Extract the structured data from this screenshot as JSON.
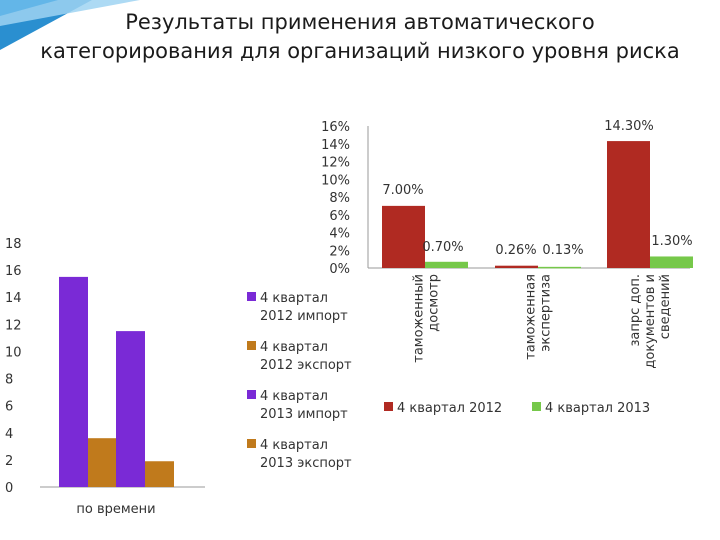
{
  "slide": {
    "title_line1": "Результаты применения  автоматического",
    "title_line2": "категорирования для организаций низкого уровня риска",
    "accent_colors": [
      "#2a8fd0",
      "#63b6e8",
      "#9fd4f2"
    ]
  },
  "chart_data": [
    {
      "type": "bar",
      "title": "",
      "xlabel": "",
      "ylabel": "",
      "categories": [
        "по времени"
      ],
      "ylim": [
        0,
        18
      ],
      "yticks": [
        "0",
        "2",
        "4",
        "6",
        "8",
        "10",
        "12",
        "14",
        "16",
        "18"
      ],
      "grid": false,
      "legend": "right",
      "series": [
        {
          "name": "4 квартал 2012 импорт",
          "color": "#7a2ad6",
          "values": [
            15.5
          ]
        },
        {
          "name": "4 квартал 2012 экспорт",
          "color": "#c07a1c",
          "values": [
            3.6
          ]
        },
        {
          "name": "4 квартал 2013 импорт",
          "color": "#7a2ad6",
          "values": [
            11.5
          ]
        },
        {
          "name": "4 квартал 2013 экспорт",
          "color": "#c07a1c",
          "values": [
            1.9
          ]
        }
      ]
    },
    {
      "type": "bar",
      "title": "",
      "xlabel": "",
      "ylabel": "",
      "categories": [
        "таможенный досмотр",
        "таможенная экспертиза",
        "запрс доп. документов и сведений"
      ],
      "ylim": [
        0,
        16
      ],
      "yticks": [
        "0%",
        "2%",
        "4%",
        "6%",
        "8%",
        "10%",
        "12%",
        "14%",
        "16%"
      ],
      "grid": false,
      "legend": "bottom",
      "series": [
        {
          "name": "4 квартал 2012",
          "color": "#b02a22",
          "values": [
            7.0,
            0.26,
            14.3
          ],
          "labels": [
            "7.00%",
            "0.26%",
            "14.30%"
          ]
        },
        {
          "name": "4 квартал 2013",
          "color": "#76c84a",
          "values": [
            0.7,
            0.13,
            1.3
          ],
          "labels": [
            "0.70%",
            "0.13%",
            "1.30%"
          ]
        }
      ]
    }
  ]
}
